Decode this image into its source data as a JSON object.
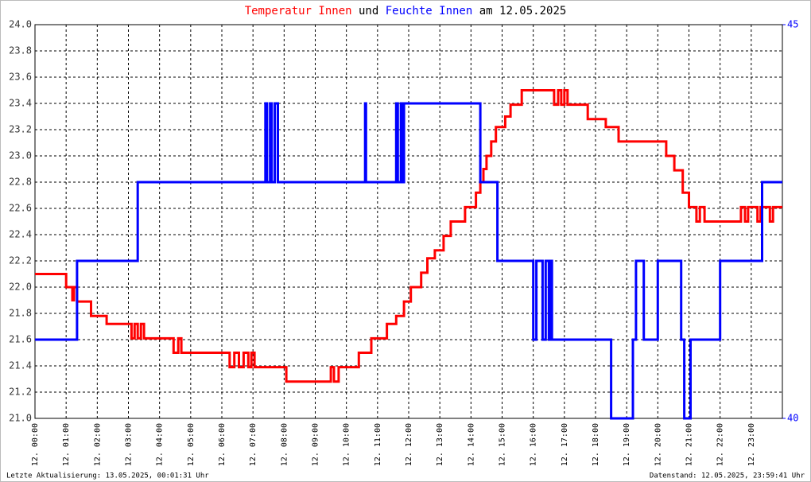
{
  "chart_data": {
    "type": "line",
    "title_parts": [
      "Temperatur Innen",
      "und",
      "Feuchte Innen",
      "am 12.05.2025"
    ],
    "update_note": "Letzte Aktualisierung: 13.05.2025, 00:01:31 Uhr",
    "data_note": "Datenstand: 12.05.2025, 23:59:41 Uhr",
    "grid": true,
    "xlim": [
      0,
      24
    ],
    "xticks": [
      {
        "value": 0,
        "label": "12. 00:00"
      },
      {
        "value": 1,
        "label": "12. 01:00"
      },
      {
        "value": 2,
        "label": "12. 02:00"
      },
      {
        "value": 3,
        "label": "12. 03:00"
      },
      {
        "value": 4,
        "label": "12. 04:00"
      },
      {
        "value": 5,
        "label": "12. 05:00"
      },
      {
        "value": 6,
        "label": "12. 06:00"
      },
      {
        "value": 7,
        "label": "12. 07:00"
      },
      {
        "value": 8,
        "label": "12. 08:00"
      },
      {
        "value": 9,
        "label": "12. 09:00"
      },
      {
        "value": 10,
        "label": "12. 10:00"
      },
      {
        "value": 11,
        "label": "12. 11:00"
      },
      {
        "value": 12,
        "label": "12. 12:00"
      },
      {
        "value": 13,
        "label": "12. 13:00"
      },
      {
        "value": 14,
        "label": "12. 14:00"
      },
      {
        "value": 15,
        "label": "12. 15:00"
      },
      {
        "value": 16,
        "label": "12. 16:00"
      },
      {
        "value": 17,
        "label": "12. 17:00"
      },
      {
        "value": 18,
        "label": "12. 18:00"
      },
      {
        "value": 19,
        "label": "12. 19:00"
      },
      {
        "value": 20,
        "label": "12. 20:00"
      },
      {
        "value": 21,
        "label": "12. 21:00"
      },
      {
        "value": 22,
        "label": "12. 22:00"
      },
      {
        "value": 23,
        "label": "12. 23:00"
      }
    ],
    "ylim": [
      21,
      24
    ],
    "yticks": [
      {
        "value": 21,
        "label": "21.0"
      },
      21.2,
      21.4,
      21.6,
      21.8,
      {
        "value": 22,
        "label": "22.0"
      },
      22.2,
      22.4,
      22.6,
      22.8,
      {
        "value": 23,
        "label": "23.0"
      },
      23.2,
      23.4,
      23.6,
      23.8,
      {
        "value": 24,
        "label": "24.0"
      }
    ],
    "y2lim": [
      40,
      45
    ],
    "y2ticks": [
      40,
      45
    ],
    "series": [
      {
        "name": "Temperatur Innen",
        "color": "#ff0000",
        "x": [
          0,
          1.0,
          1.0,
          1.2,
          1.2,
          1.25,
          1.25,
          1.35,
          1.35,
          1.8,
          1.8,
          2.3,
          2.3,
          3.1,
          3.1,
          3.2,
          3.2,
          3.3,
          3.3,
          3.4,
          3.4,
          3.5,
          3.5,
          4.45,
          4.45,
          4.6,
          4.6,
          4.7,
          4.7,
          6.25,
          6.25,
          6.4,
          6.4,
          6.55,
          6.55,
          6.7,
          6.7,
          6.85,
          6.85,
          6.95,
          6.95,
          7.05,
          7.05,
          8.07,
          8.07,
          9.5,
          9.5,
          9.6,
          9.6,
          9.75,
          9.75,
          10.4,
          10.4,
          10.8,
          10.8,
          11.3,
          11.3,
          11.6,
          11.6,
          11.85,
          11.85,
          12.07,
          12.07,
          12.4,
          12.4,
          12.6,
          12.6,
          12.84,
          12.84,
          13.12,
          13.12,
          13.35,
          13.35,
          13.81,
          13.81,
          14.16,
          14.16,
          14.3,
          14.3,
          14.4,
          14.4,
          14.5,
          14.5,
          14.65,
          14.65,
          14.8,
          14.8,
          15.1,
          15.1,
          15.27,
          15.27,
          15.63,
          15.63,
          16.67,
          16.67,
          16.8,
          16.8,
          16.9,
          16.9,
          17.0,
          17.0,
          17.1,
          17.1,
          17.75,
          17.75,
          18.33,
          18.33,
          18.74,
          18.74,
          20.27,
          20.27,
          20.53,
          20.53,
          20.8,
          20.8,
          21.0,
          21.0,
          21.24,
          21.24,
          21.35,
          21.35,
          21.5,
          21.5,
          22.67,
          22.67,
          22.8,
          22.8,
          22.9,
          22.9,
          23.2,
          23.2,
          23.3,
          23.3,
          23.6,
          23.6,
          23.7,
          23.7,
          24
        ],
        "values": [
          22.1,
          22.1,
          22.0,
          22.0,
          21.9,
          21.9,
          22.0,
          22.0,
          21.89,
          21.89,
          21.78,
          21.78,
          21.72,
          21.72,
          21.61,
          21.61,
          21.72,
          21.72,
          21.61,
          21.61,
          21.72,
          21.72,
          21.61,
          21.61,
          21.5,
          21.5,
          21.61,
          21.61,
          21.5,
          21.5,
          21.39,
          21.39,
          21.5,
          21.5,
          21.39,
          21.39,
          21.5,
          21.5,
          21.39,
          21.39,
          21.5,
          21.5,
          21.39,
          21.39,
          21.28,
          21.28,
          21.39,
          21.39,
          21.28,
          21.28,
          21.39,
          21.39,
          21.5,
          21.5,
          21.61,
          21.61,
          21.72,
          21.72,
          21.78,
          21.78,
          21.89,
          21.89,
          22.0,
          22.0,
          22.11,
          22.11,
          22.22,
          22.22,
          22.28,
          22.28,
          22.39,
          22.39,
          22.5,
          22.5,
          22.61,
          22.61,
          22.72,
          22.72,
          22.8,
          22.8,
          22.9,
          22.9,
          23.0,
          23.0,
          23.11,
          23.11,
          23.22,
          23.22,
          23.3,
          23.3,
          23.39,
          23.39,
          23.5,
          23.5,
          23.39,
          23.39,
          23.5,
          23.5,
          23.39,
          23.39,
          23.5,
          23.5,
          23.39,
          23.39,
          23.28,
          23.28,
          23.22,
          23.22,
          23.11,
          23.11,
          23.0,
          23.0,
          22.89,
          22.89,
          22.72,
          22.72,
          22.61,
          22.61,
          22.5,
          22.5,
          22.61,
          22.61,
          22.5,
          22.5,
          22.61,
          22.61,
          22.5,
          22.5,
          22.61,
          22.61,
          22.5,
          22.5,
          22.61,
          22.61,
          22.5,
          22.5,
          22.61,
          22.61
        ]
      },
      {
        "name": "Feuchte Innen",
        "color": "#0000ff",
        "axis": "y2",
        "x": [
          0,
          1.35,
          1.35,
          3.3,
          3.3,
          7.4,
          7.4,
          7.45,
          7.45,
          7.55,
          7.55,
          7.6,
          7.6,
          7.7,
          7.7,
          7.8,
          7.8,
          10.6,
          10.6,
          10.63,
          10.63,
          11.6,
          11.6,
          11.65,
          11.65,
          11.75,
          11.75,
          11.8,
          11.8,
          11.85,
          11.85,
          14.3,
          14.3,
          14.85,
          14.85,
          16.0,
          16.0,
          16.1,
          16.1,
          16.3,
          16.3,
          16.4,
          16.4,
          16.5,
          16.5,
          16.55,
          16.55,
          16.6,
          16.6,
          18.5,
          18.5,
          19.2,
          19.2,
          19.3,
          19.3,
          19.55,
          19.55,
          20.0,
          20.0,
          20.75,
          20.75,
          20.85,
          20.85,
          21.05,
          21.05,
          22.0,
          22.0,
          23.35,
          23.35,
          24
        ],
        "values": [
          41,
          41,
          42,
          42,
          43,
          43,
          44,
          44,
          43,
          43,
          44,
          44,
          43,
          43,
          44,
          44,
          43,
          43,
          44,
          44,
          43,
          43,
          44,
          44,
          43,
          43,
          44,
          44,
          43,
          43,
          44,
          44,
          43,
          43,
          42,
          42,
          41,
          41,
          42,
          42,
          41,
          41,
          42,
          42,
          41,
          41,
          42,
          42,
          41,
          41,
          40,
          40,
          41,
          41,
          42,
          42,
          41,
          41,
          42,
          42,
          41,
          41,
          40,
          40,
          41,
          41,
          42,
          42,
          43,
          43
        ]
      }
    ]
  }
}
